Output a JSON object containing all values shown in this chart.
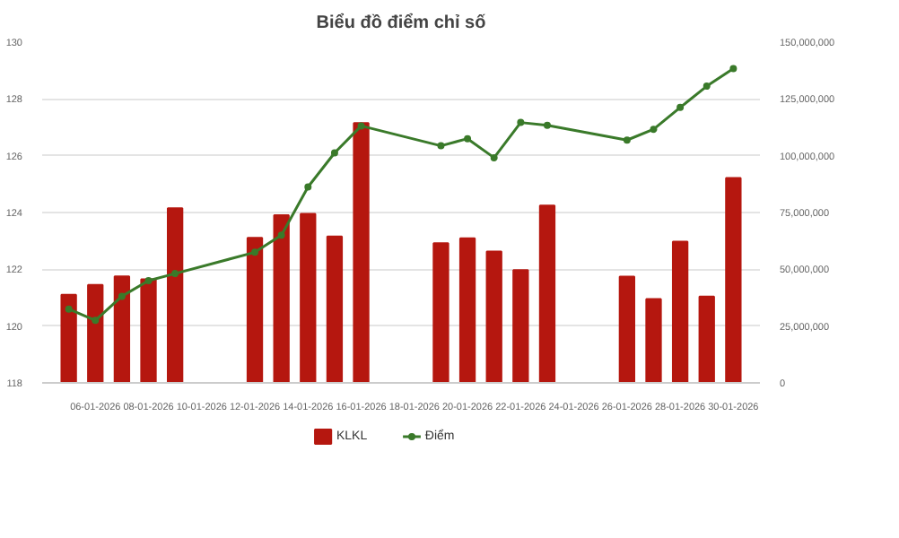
{
  "chart_data": {
    "type": "bar",
    "title": "Biểu đồ điểm chỉ số",
    "x": [
      "2026-01-05",
      "2026-01-06",
      "2026-01-07",
      "2026-01-08",
      "2026-01-09",
      "2026-01-12",
      "2026-01-13",
      "2026-01-14",
      "2026-01-15",
      "2026-01-16",
      "2026-01-19",
      "2026-01-20",
      "2026-01-21",
      "2026-01-22",
      "2026-01-23",
      "2026-01-26",
      "2026-01-27",
      "2026-01-28",
      "2026-01-29",
      "2026-01-30"
    ],
    "series": [
      {
        "name": "KLKL",
        "axis": "y2",
        "color": "#b5170f",
        "values": [
          38800000,
          43100000,
          46900000,
          45600000,
          76900000,
          63800000,
          73800000,
          74400000,
          64400000,
          114400000,
          61500000,
          63700000,
          57800000,
          49600000,
          78100000,
          46800000,
          36900000,
          62200000,
          38000000,
          90200000
        ]
      },
      {
        "name": "Điểm",
        "type": "line",
        "color": "#3a7a2a",
        "marker": "circle",
        "values": [
          120.6,
          120.2,
          121.05,
          121.6,
          121.85,
          122.6,
          123.2,
          124.9,
          126.1,
          127.05,
          126.35,
          126.6,
          125.93,
          127.17,
          127.07,
          126.55,
          126.93,
          127.7,
          128.45,
          129.07
        ]
      }
    ],
    "xlim": [
      "2026-01-04",
      "2026-01-31"
    ],
    "xticks": [
      {
        "value": "2026-01-06",
        "label": "06-01-2026"
      },
      {
        "value": "2026-01-08",
        "label": "08-01-2026"
      },
      {
        "value": "2026-01-10",
        "label": "10-01-2026"
      },
      {
        "value": "2026-01-12",
        "label": "12-01-2026"
      },
      {
        "value": "2026-01-14",
        "label": "14-01-2026"
      },
      {
        "value": "2026-01-16",
        "label": "16-01-2026"
      },
      {
        "value": "2026-01-18",
        "label": "18-01-2026"
      },
      {
        "value": "2026-01-20",
        "label": "20-01-2026"
      },
      {
        "value": "2026-01-22",
        "label": "22-01-2026"
      },
      {
        "value": "2026-01-24",
        "label": "24-01-2026"
      },
      {
        "value": "2026-01-26",
        "label": "26-01-2026"
      },
      {
        "value": "2026-01-28",
        "label": "28-01-2026"
      },
      {
        "value": "2026-01-30",
        "label": "30-01-2026"
      }
    ],
    "ylim": [
      118,
      130
    ],
    "yticks": [
      118,
      120,
      122,
      124,
      126,
      128,
      130
    ],
    "y2lim": [
      0,
      150000000
    ],
    "y2ticks": [
      0,
      {
        "value": 25000000,
        "label": "25,000,000"
      },
      {
        "value": 50000000,
        "label": "50,000,000"
      },
      {
        "value": 75000000,
        "label": "75,000,000"
      },
      {
        "value": 100000000,
        "label": "100,000,000"
      },
      {
        "value": 125000000,
        "label": "125,000,000"
      },
      {
        "value": 150000000,
        "label": "150,000,000"
      }
    ],
    "grid": "y",
    "legend": "bottom",
    "line_style": "solid"
  }
}
